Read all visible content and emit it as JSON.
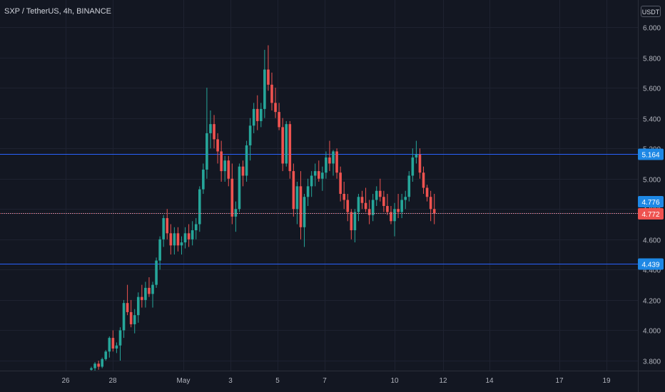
{
  "header": {
    "title": "SXP / TetherUS, 4h, BINANCE",
    "currency": "USDT"
  },
  "colors": {
    "background": "#131722",
    "grid": "#1e2230",
    "up": "#26a69a",
    "down": "#ef5350",
    "level_line": "#2962ff",
    "level_label": "#1e88e5",
    "axis_text": "#b2b5be"
  },
  "chart_data": {
    "type": "candlestick",
    "symbol": "SXP / TetherUS",
    "interval": "4h",
    "exchange": "BINANCE",
    "y_axis": {
      "ticks": [
        6.0,
        5.8,
        5.6,
        5.4,
        5.2,
        5.0,
        4.8,
        4.6,
        4.4,
        4.2,
        4.0,
        3.8
      ],
      "tick_labels": [
        "6.000",
        "5.800",
        "5.600",
        "5.400",
        "5.200",
        "5.000",
        "4.800",
        "4.600",
        "4.400",
        "4.200",
        "4.000",
        "3.800"
      ],
      "range": [
        3.74,
        6.06
      ]
    },
    "x_axis": {
      "tick_labels": [
        "26",
        "28",
        "May",
        "3",
        "5",
        "7",
        "10",
        "12",
        "14",
        "17",
        "19"
      ]
    },
    "horizontal_levels": [
      {
        "value": 5.164,
        "label": "5.164"
      },
      {
        "value": 4.439,
        "label": "4.439"
      }
    ],
    "price_labels": [
      {
        "value": 4.776,
        "label": "4.776",
        "kind": "high"
      },
      {
        "value": 4.772,
        "label": "4.772",
        "kind": "last"
      }
    ],
    "candles": [
      [
        3.74,
        3.76,
        3.73,
        3.75
      ],
      [
        3.75,
        3.79,
        3.73,
        3.78
      ],
      [
        3.78,
        3.8,
        3.74,
        3.76
      ],
      [
        3.76,
        3.82,
        3.75,
        3.81
      ],
      [
        3.81,
        3.87,
        3.8,
        3.86
      ],
      [
        3.86,
        3.96,
        3.82,
        3.95
      ],
      [
        3.95,
        4.0,
        3.86,
        3.88
      ],
      [
        3.88,
        3.92,
        3.85,
        3.9
      ],
      [
        3.9,
        4.02,
        3.8,
        4.0
      ],
      [
        4.0,
        4.2,
        3.95,
        4.18
      ],
      [
        4.18,
        4.3,
        4.1,
        4.12
      ],
      [
        4.12,
        4.2,
        4.02,
        4.04
      ],
      [
        4.04,
        4.14,
        3.98,
        4.1
      ],
      [
        4.1,
        4.25,
        4.05,
        4.22
      ],
      [
        4.22,
        4.3,
        4.15,
        4.2
      ],
      [
        4.2,
        4.32,
        4.15,
        4.28
      ],
      [
        4.28,
        4.35,
        4.22,
        4.24
      ],
      [
        4.24,
        4.32,
        4.15,
        4.3
      ],
      [
        4.3,
        4.48,
        4.28,
        4.46
      ],
      [
        4.46,
        4.62,
        4.4,
        4.6
      ],
      [
        4.6,
        4.76,
        4.55,
        4.74
      ],
      [
        4.74,
        4.8,
        4.6,
        4.64
      ],
      [
        4.64,
        4.7,
        4.5,
        4.56
      ],
      [
        4.56,
        4.68,
        4.5,
        4.64
      ],
      [
        4.64,
        4.68,
        4.52,
        4.56
      ],
      [
        4.56,
        4.62,
        4.5,
        4.58
      ],
      [
        4.58,
        4.68,
        4.54,
        4.64
      ],
      [
        4.64,
        4.7,
        4.55,
        4.6
      ],
      [
        4.6,
        4.72,
        4.56,
        4.66
      ],
      [
        4.66,
        4.74,
        4.6,
        4.7
      ],
      [
        4.7,
        4.95,
        4.65,
        4.93
      ],
      [
        4.93,
        5.1,
        4.9,
        5.06
      ],
      [
        5.06,
        5.6,
        5.0,
        5.3
      ],
      [
        5.3,
        5.45,
        5.2,
        5.36
      ],
      [
        5.36,
        5.42,
        5.2,
        5.26
      ],
      [
        5.26,
        5.3,
        5.1,
        5.18
      ],
      [
        5.18,
        5.25,
        4.98,
        5.05
      ],
      [
        5.05,
        5.15,
        4.98,
        5.12
      ],
      [
        5.12,
        5.15,
        4.95,
        5.0
      ],
      [
        5.0,
        5.1,
        4.7,
        4.75
      ],
      [
        4.75,
        4.85,
        4.65,
        4.8
      ],
      [
        4.8,
        5.1,
        4.78,
        5.08
      ],
      [
        5.08,
        5.12,
        4.95,
        5.02
      ],
      [
        5.02,
        5.25,
        4.98,
        5.22
      ],
      [
        5.22,
        5.4,
        5.12,
        5.35
      ],
      [
        5.35,
        5.5,
        5.3,
        5.46
      ],
      [
        5.46,
        5.55,
        5.32,
        5.38
      ],
      [
        5.38,
        5.5,
        5.34,
        5.46
      ],
      [
        5.46,
        5.85,
        5.4,
        5.72
      ],
      [
        5.72,
        5.88,
        5.58,
        5.62
      ],
      [
        5.62,
        5.7,
        5.45,
        5.5
      ],
      [
        5.5,
        5.6,
        5.4,
        5.44
      ],
      [
        5.44,
        5.5,
        5.32,
        5.34
      ],
      [
        5.34,
        5.4,
        5.05,
        5.1
      ],
      [
        5.1,
        5.38,
        5.08,
        5.36
      ],
      [
        5.36,
        5.38,
        5.0,
        5.05
      ],
      [
        5.05,
        5.1,
        4.75,
        4.8
      ],
      [
        4.8,
        4.98,
        4.7,
        4.95
      ],
      [
        4.95,
        5.05,
        4.6,
        4.68
      ],
      [
        4.68,
        4.9,
        4.55,
        4.88
      ],
      [
        4.88,
        5.0,
        4.82,
        4.95
      ],
      [
        4.95,
        5.05,
        4.88,
        5.02
      ],
      [
        5.02,
        5.1,
        4.95,
        5.05
      ],
      [
        5.05,
        5.12,
        4.98,
        5.0
      ],
      [
        5.0,
        5.08,
        4.92,
        5.04
      ],
      [
        5.04,
        5.18,
        5.0,
        5.14
      ],
      [
        5.14,
        5.25,
        5.05,
        5.1
      ],
      [
        5.1,
        5.19,
        5.02,
        5.18
      ],
      [
        5.18,
        5.2,
        5.0,
        5.04
      ],
      [
        5.04,
        5.08,
        4.85,
        4.9
      ],
      [
        4.9,
        4.98,
        4.8,
        4.86
      ],
      [
        4.86,
        4.9,
        4.72,
        4.78
      ],
      [
        4.78,
        4.8,
        4.6,
        4.66
      ],
      [
        4.66,
        4.8,
        4.58,
        4.78
      ],
      [
        4.78,
        4.9,
        4.72,
        4.88
      ],
      [
        4.88,
        4.92,
        4.8,
        4.84
      ],
      [
        4.84,
        4.94,
        4.78,
        4.8
      ],
      [
        4.8,
        4.86,
        4.7,
        4.76
      ],
      [
        4.76,
        4.9,
        4.72,
        4.86
      ],
      [
        4.86,
        4.95,
        4.82,
        4.92
      ],
      [
        4.92,
        5.0,
        4.85,
        4.88
      ],
      [
        4.88,
        4.92,
        4.78,
        4.82
      ],
      [
        4.82,
        4.9,
        4.76,
        4.78
      ],
      [
        4.78,
        4.82,
        4.7,
        4.72
      ],
      [
        4.72,
        4.84,
        4.62,
        4.8
      ],
      [
        4.8,
        4.9,
        4.74,
        4.78
      ],
      [
        4.78,
        4.9,
        4.74,
        4.86
      ],
      [
        4.86,
        4.92,
        4.8,
        4.88
      ],
      [
        4.88,
        5.05,
        4.85,
        5.02
      ],
      [
        5.02,
        5.2,
        4.98,
        5.14
      ],
      [
        5.14,
        5.25,
        5.1,
        5.16
      ],
      [
        5.16,
        5.2,
        5.0,
        5.04
      ],
      [
        5.04,
        5.08,
        4.9,
        4.94
      ],
      [
        4.94,
        4.96,
        4.85,
        4.88
      ],
      [
        4.88,
        4.92,
        4.72,
        4.8
      ],
      [
        4.8,
        4.9,
        4.7,
        4.77
      ]
    ]
  }
}
